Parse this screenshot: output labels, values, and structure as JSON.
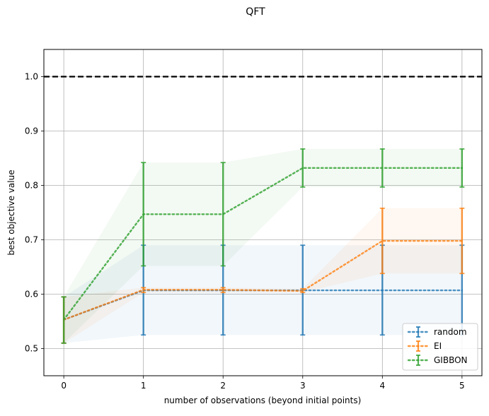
{
  "chart_data": {
    "type": "line",
    "title": "QFT",
    "xlabel": "number of observations (beyond initial points)",
    "ylabel": "best objective value",
    "x": [
      0,
      1,
      2,
      3,
      4,
      5
    ],
    "xlim": [
      -0.25,
      5.25
    ],
    "ylim": [
      0.45,
      1.05
    ],
    "xticks": [
      "0",
      "1",
      "2",
      "3",
      "4",
      "5"
    ],
    "yticks": [
      "0.5",
      "0.6",
      "0.7",
      "0.8",
      "0.9",
      "1.0"
    ],
    "grid": true,
    "legend_location": "lower right",
    "reference_line": {
      "y": 1.0,
      "style": "dashed",
      "color": "#000000"
    },
    "series": [
      {
        "name": "random",
        "color": "#1f77b4",
        "values": [
          0.553,
          0.607,
          0.607,
          0.607,
          0.607,
          0.607
        ],
        "err_low": [
          0.51,
          0.525,
          0.525,
          0.525,
          0.525,
          0.525
        ],
        "err_high": [
          0.595,
          0.69,
          0.69,
          0.69,
          0.69,
          0.69
        ]
      },
      {
        "name": "EI",
        "color": "#ff7f0e",
        "values": [
          0.553,
          0.608,
          0.608,
          0.606,
          0.698,
          0.698
        ],
        "err_low": [
          0.51,
          0.603,
          0.603,
          0.603,
          0.638,
          0.638
        ],
        "err_high": [
          0.595,
          0.612,
          0.612,
          0.61,
          0.758,
          0.758
        ]
      },
      {
        "name": "GIBBON",
        "color": "#2ca02c",
        "values": [
          0.553,
          0.747,
          0.747,
          0.832,
          0.832,
          0.832
        ],
        "err_low": [
          0.51,
          0.652,
          0.652,
          0.797,
          0.797,
          0.797
        ],
        "err_high": [
          0.595,
          0.842,
          0.842,
          0.867,
          0.867,
          0.867
        ]
      }
    ]
  }
}
